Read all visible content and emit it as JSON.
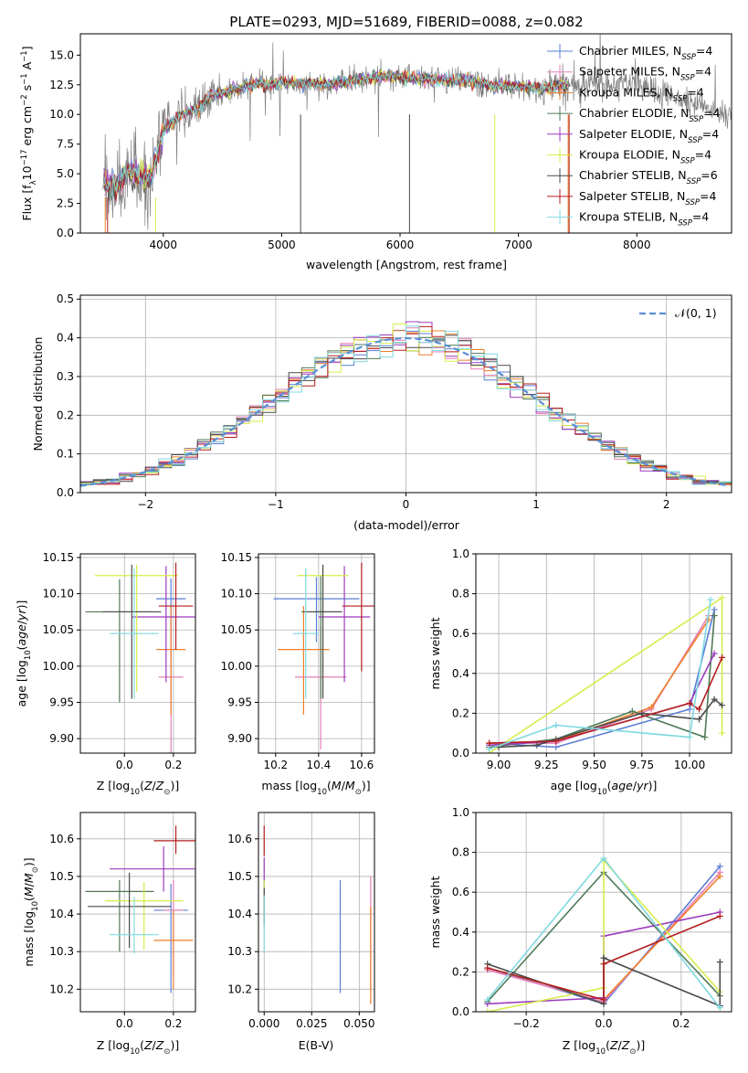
{
  "colors": {
    "chabrier_miles": "#5a7fd6",
    "salpeter_miles": "#e67fb8",
    "kroupa_miles": "#ef7f2a",
    "chabrier_elodie": "#4f7a58",
    "salpeter_elodie": "#9c3bbd",
    "kroupa_elodie": "#d8ec4a",
    "chabrier_stelib": "#4a4a4a",
    "salpeter_stelib": "#b51f1f",
    "kroupa_stelib": "#7fd9e0",
    "spectrum": "#808080",
    "gauss": "#5a8fd6"
  },
  "chart_data": [
    {
      "id": "spectrum",
      "type": "line",
      "title": "PLATE=0293, MJD=51689, FIBERID=0088, z=0.082",
      "xlabel": "wavelength [Angstrom, rest frame]",
      "ylabel": "Flux [f_λ 10^-17 erg cm^-2 s^-1 A^-1]",
      "xlim": [
        3300,
        8800
      ],
      "ylim": [
        0,
        16.8
      ],
      "xticks": [
        "4000",
        "5000",
        "6000",
        "7000",
        "8000"
      ],
      "yticks": [
        "0.0",
        "2.5",
        "5.0",
        "7.5",
        "10.0",
        "12.5",
        "15.0"
      ],
      "legend_position": "right",
      "series": [
        {
          "name": "Chabrier MILES, N_SSP=4"
        },
        {
          "name": "Salpeter MILES, N_SSP=4"
        },
        {
          "name": "Kroupa MILES, N_SSP=4"
        },
        {
          "name": "Chabrier ELODIE, N_SSP=4"
        },
        {
          "name": "Salpeter ELODIE, N_SSP=4"
        },
        {
          "name": "Kroupa ELODIE, N_SSP=4"
        },
        {
          "name": "Chabrier STELIB, N_SSP=6"
        },
        {
          "name": "Salpeter STELIB, N_SSP=4"
        },
        {
          "name": "Kroupa STELIB, N_SSP=4"
        }
      ],
      "continuum_x": [
        3500,
        3600,
        3700,
        3800,
        3900,
        4000,
        4100,
        4200,
        4300,
        4400,
        4500,
        4600,
        4700,
        4800,
        4900,
        5000,
        5200,
        5400,
        5600,
        5800,
        6000,
        6200,
        6400,
        6600,
        6800,
        7000,
        7200,
        7400,
        7600,
        7800,
        8000,
        8200,
        8400,
        8600,
        8800
      ],
      "continuum_y": [
        4.2,
        3.8,
        5.2,
        4.6,
        4.8,
        8.6,
        9.6,
        10.2,
        10.6,
        11.6,
        11.8,
        12.2,
        12.4,
        12.6,
        12.5,
        12.7,
        12.6,
        12.5,
        12.8,
        13.2,
        13.2,
        13.0,
        12.9,
        12.8,
        12.4,
        12.4,
        12.2,
        12.5,
        12.4,
        12.5,
        12.6,
        11.8,
        11.2,
        10.5,
        9.8
      ]
    },
    {
      "id": "residuals",
      "type": "bar",
      "xlabel": "(data-model)/error",
      "ylabel": "Normed distribution",
      "xlim": [
        -2.5,
        2.5
      ],
      "ylim": [
        0,
        0.51
      ],
      "xticks": [
        "−2",
        "−1",
        "0",
        "1",
        "2"
      ],
      "yticks": [
        "0.0",
        "0.1",
        "0.2",
        "0.3",
        "0.4",
        "0.5"
      ],
      "legend": "𝒩(0, 1)",
      "legend_position": "top-right",
      "bin_width": 0.1
    },
    {
      "id": "age-vs-Z",
      "type": "scatter",
      "xlabel": "Z [log10(Z/Z⊙)]",
      "ylabel": "age  [log10(age/yr)]",
      "xlim": [
        -0.18,
        0.29
      ],
      "ylim": [
        9.88,
        10.155
      ],
      "xticks": [
        "0.0",
        "0.2"
      ],
      "yticks": [
        "9.90",
        "9.95",
        "10.00",
        "10.05",
        "10.10",
        "10.15"
      ],
      "points": [
        {
          "series": "chabrier_miles",
          "x": 0.19,
          "y": 10.093,
          "xerr": 0.06,
          "yerr": [
            0.063,
            0.028
          ]
        },
        {
          "series": "salpeter_miles",
          "x": 0.19,
          "y": 9.985,
          "xerr": 0.05,
          "yerr": [
            0.11,
            0.07
          ]
        },
        {
          "series": "kroupa_miles",
          "x": 0.19,
          "y": 10.023,
          "xerr": 0.06,
          "yerr": [
            0.09,
            0.06
          ]
        },
        {
          "series": "chabrier_elodie",
          "x": -0.02,
          "y": 10.075,
          "xerr": 0.14,
          "yerr": [
            0.125,
            0.045
          ]
        },
        {
          "series": "salpeter_elodie",
          "x": 0.17,
          "y": 10.068,
          "xerr": 0.14,
          "yerr": [
            0.09,
            0.07
          ]
        },
        {
          "series": "kroupa_elodie",
          "x": 0.05,
          "y": 10.125,
          "xerr": 0.17,
          "yerr": [
            0.16,
            0.015
          ]
        },
        {
          "series": "chabrier_stelib",
          "x": 0.03,
          "y": 10.075,
          "xerr": 0.12,
          "yerr": [
            0.12,
            0.065
          ]
        },
        {
          "series": "salpeter_stelib",
          "x": 0.21,
          "y": 10.083,
          "xerr": 0.07,
          "yerr": [
            0.06,
            0.06
          ]
        },
        {
          "series": "kroupa_stelib",
          "x": 0.04,
          "y": 10.045,
          "xerr": 0.1,
          "yerr": [
            0.09,
            0.09
          ]
        }
      ]
    },
    {
      "id": "age-vs-mass",
      "type": "scatter",
      "xlabel": "mass [log10(M/M⊙)]",
      "ylabel": "",
      "xlim": [
        10.12,
        10.66
      ],
      "ylim": [
        9.88,
        10.155
      ],
      "xticks": [
        "10.2",
        "10.4",
        "10.6"
      ],
      "yticks": [
        "9.90",
        "9.95",
        "10.00",
        "10.05",
        "10.10",
        "10.15"
      ],
      "points": [
        {
          "series": "chabrier_miles",
          "x": 10.39,
          "y": 10.093,
          "xerr": 0.2,
          "yerr": [
            0.06,
            0.03
          ]
        },
        {
          "series": "salpeter_miles",
          "x": 10.41,
          "y": 9.985,
          "xerr": 0.12,
          "yerr": [
            0.1,
            0.07
          ]
        },
        {
          "series": "kroupa_miles",
          "x": 10.33,
          "y": 10.023,
          "xerr": 0.12,
          "yerr": [
            0.09,
            0.06
          ]
        },
        {
          "series": "chabrier_elodie",
          "x": 10.41,
          "y": 10.075,
          "xerr": 0.09,
          "yerr": [
            0.12,
            0.05
          ]
        },
        {
          "series": "salpeter_elodie",
          "x": 10.52,
          "y": 10.068,
          "xerr": 0.12,
          "yerr": [
            0.09,
            0.07
          ]
        },
        {
          "series": "kroupa_elodie",
          "x": 10.42,
          "y": 10.125,
          "xerr": 0.12,
          "yerr": [
            0.16,
            0.015
          ]
        },
        {
          "series": "chabrier_stelib",
          "x": 10.42,
          "y": 10.075,
          "xerr": 0.09,
          "yerr": [
            0.12,
            0.065
          ]
        },
        {
          "series": "salpeter_stelib",
          "x": 10.6,
          "y": 10.083,
          "xerr": 0.09,
          "yerr": [
            0.09,
            0.06
          ]
        },
        {
          "series": "kroupa_stelib",
          "x": 10.34,
          "y": 10.045,
          "xerr": 0.06,
          "yerr": [
            0.09,
            0.09
          ]
        }
      ]
    },
    {
      "id": "mass-vs-Z",
      "type": "scatter",
      "xlabel": "Z [log10(Z/Z⊙)]",
      "ylabel": "mass [log10(M/M⊙)]",
      "xlim": [
        -0.18,
        0.29
      ],
      "ylim": [
        10.14,
        10.67
      ],
      "xticks": [
        "0.0",
        "0.2"
      ],
      "yticks": [
        "10.2",
        "10.3",
        "10.4",
        "10.5",
        "10.6"
      ],
      "points": [
        {
          "series": "chabrier_miles",
          "x": 0.19,
          "y": 10.41,
          "xerr": 0.07,
          "yerr": [
            0.22,
            0.07
          ]
        },
        {
          "series": "salpeter_miles",
          "x": 0.2,
          "y": 10.41,
          "xerr": 0.04,
          "yerr": [
            0.18,
            0.08
          ]
        },
        {
          "series": "kroupa_miles",
          "x": 0.2,
          "y": 10.33,
          "xerr": 0.08,
          "yerr": [
            0.13,
            0.08
          ]
        },
        {
          "series": "chabrier_elodie",
          "x": -0.02,
          "y": 10.46,
          "xerr": 0.14,
          "yerr": [
            0.16,
            0.03
          ]
        },
        {
          "series": "salpeter_elodie",
          "x": 0.16,
          "y": 10.52,
          "xerr": 0.22,
          "yerr": [
            0.06,
            0.06
          ]
        },
        {
          "series": "kroupa_elodie",
          "x": 0.08,
          "y": 10.435,
          "xerr": 0.16,
          "yerr": [
            0.13,
            0.05
          ]
        },
        {
          "series": "chabrier_stelib",
          "x": 0.02,
          "y": 10.42,
          "xerr": 0.17,
          "yerr": [
            0.11,
            0.09
          ]
        },
        {
          "series": "salpeter_stelib",
          "x": 0.21,
          "y": 10.595,
          "xerr": 0.09,
          "yerr": [
            0.035,
            0.04
          ]
        },
        {
          "series": "kroupa_stelib",
          "x": 0.04,
          "y": 10.345,
          "xerr": 0.1,
          "yerr": [
            0.05,
            0.1
          ]
        }
      ]
    },
    {
      "id": "mass-vs-ebv",
      "type": "scatter",
      "xlabel": "E(B-V)",
      "ylabel": "",
      "xlim": [
        -0.003,
        0.058
      ],
      "ylim": [
        10.14,
        10.67
      ],
      "xticks": [
        "0.000",
        "0.025",
        "0.050"
      ],
      "yticks": [
        "10.2",
        "10.3",
        "10.4",
        "10.5",
        "10.6"
      ],
      "points": [
        {
          "series": "chabrier_miles",
          "x": 0.04,
          "y": 10.34,
          "yerr": [
            0.15,
            0.15
          ]
        },
        {
          "series": "salpeter_miles",
          "x": 0.056,
          "y": 10.4,
          "yerr": [
            0.2,
            0.1
          ]
        },
        {
          "series": "kroupa_miles",
          "x": 0.056,
          "y": 10.3,
          "yerr": [
            0.14,
            0.12
          ]
        },
        {
          "series": "chabrier_elodie",
          "x": 0.0,
          "y": 10.43,
          "yerr": [
            0.05,
            0.06
          ]
        },
        {
          "series": "salpeter_elodie",
          "x": 0.0,
          "y": 10.5,
          "yerr": [
            0.05,
            0.05
          ]
        },
        {
          "series": "kroupa_elodie",
          "x": 0.0,
          "y": 10.44,
          "yerr": [
            0.05,
            0.05
          ]
        },
        {
          "series": "chabrier_stelib",
          "x": 0.0,
          "y": 10.42,
          "yerr": [
            0.05,
            0.05
          ]
        },
        {
          "series": "salpeter_stelib",
          "x": 0.0,
          "y": 10.595,
          "yerr": [
            0.04,
            0.04
          ]
        },
        {
          "series": "kroupa_stelib",
          "x": 0.0,
          "y": 10.35,
          "yerr": [
            0.05,
            0.1
          ]
        }
      ]
    },
    {
      "id": "weight-vs-age",
      "type": "line",
      "xlabel": "age  [log10(age/yr)]",
      "ylabel": "mass weight",
      "xlim": [
        8.88,
        10.22
      ],
      "ylim": [
        0,
        1.0
      ],
      "xticks": [
        "9.00",
        "9.25",
        "9.50",
        "9.75",
        "10.00"
      ],
      "yticks": [
        "0.0",
        "0.2",
        "0.4",
        "0.6",
        "0.8",
        "1.0"
      ],
      "series": [
        {
          "series": "chabrier_miles",
          "x": [
            8.95,
            9.3,
            10.0,
            10.13
          ],
          "y": [
            0.05,
            0.03,
            0.22,
            0.72
          ]
        },
        {
          "series": "salpeter_miles",
          "x": [
            8.95,
            9.3,
            9.8,
            10.1
          ],
          "y": [
            0.05,
            0.05,
            0.22,
            0.69
          ]
        },
        {
          "series": "kroupa_miles",
          "x": [
            8.95,
            9.3,
            9.8,
            10.1
          ],
          "y": [
            0.05,
            0.06,
            0.23,
            0.67
          ]
        },
        {
          "series": "chabrier_elodie",
          "x": [
            8.95,
            9.3,
            9.7,
            10.08,
            10.13
          ],
          "y": [
            0.03,
            0.07,
            0.21,
            0.08,
            0.69
          ]
        },
        {
          "series": "salpeter_elodie",
          "x": [
            8.95,
            9.3,
            10.0,
            10.13
          ],
          "y": [
            0.04,
            0.06,
            0.25,
            0.5
          ]
        },
        {
          "series": "kroupa_elodie",
          "x": [
            8.95,
            10.17,
            10.17
          ],
          "y": [
            0.0,
            0.78,
            0.1
          ]
        },
        {
          "series": "chabrier_stelib",
          "x": [
            9.0,
            9.2,
            9.75,
            10.05,
            10.13,
            10.17
          ],
          "y": [
            0.03,
            0.04,
            0.2,
            0.17,
            0.27,
            0.24
          ]
        },
        {
          "series": "salpeter_stelib",
          "x": [
            8.95,
            9.3,
            10.0,
            10.05,
            10.17
          ],
          "y": [
            0.05,
            0.06,
            0.25,
            0.22,
            0.48
          ]
        },
        {
          "series": "kroupa_stelib",
          "x": [
            8.95,
            9.3,
            10.0,
            10.11
          ],
          "y": [
            0.02,
            0.14,
            0.08,
            0.77
          ]
        }
      ]
    },
    {
      "id": "weight-vs-Z",
      "type": "line",
      "xlabel": "Z [log10(Z/Z⊙)]",
      "ylabel": "mass weight",
      "xlim": [
        -0.33,
        0.33
      ],
      "ylim": [
        0,
        1.0
      ],
      "xticks": [
        "−0.2",
        "0.0",
        "0.2"
      ],
      "yticks": [
        "0.0",
        "0.2",
        "0.4",
        "0.6",
        "0.8",
        "1.0"
      ],
      "series": [
        {
          "series": "chabrier_miles",
          "x": [
            -0.3,
            0.0,
            0.3
          ],
          "y": [
            0.22,
            0.04,
            0.73
          ]
        },
        {
          "series": "salpeter_miles",
          "x": [
            -0.3,
            0.0,
            0.3
          ],
          "y": [
            0.21,
            0.05,
            0.7
          ]
        },
        {
          "series": "kroupa_miles",
          "x": [
            -0.3,
            0.0,
            0.3
          ],
          "y": [
            0.22,
            0.06,
            0.68
          ]
        },
        {
          "series": "chabrier_elodie",
          "x": [
            -0.3,
            0.0,
            0.3
          ],
          "y": [
            0.05,
            0.7,
            0.08
          ]
        },
        {
          "series": "salpeter_elodie",
          "x": [
            -0.3,
            0.0,
            0.0,
            0.3
          ],
          "y": [
            0.04,
            0.07,
            0.38,
            0.5
          ]
        },
        {
          "series": "kroupa_elodie",
          "x": [
            -0.3,
            0.0,
            0.0,
            0.3
          ],
          "y": [
            0.0,
            0.12,
            0.76,
            0.1
          ]
        },
        {
          "series": "chabrier_stelib",
          "x": [
            -0.3,
            0.0,
            0.0,
            0.3,
            0.3
          ],
          "y": [
            0.24,
            0.04,
            0.27,
            0.03,
            0.25
          ]
        },
        {
          "series": "salpeter_stelib",
          "x": [
            -0.3,
            0.0,
            0.0,
            0.3
          ],
          "y": [
            0.22,
            0.06,
            0.24,
            0.48
          ]
        },
        {
          "series": "kroupa_stelib",
          "x": [
            -0.3,
            0.0,
            0.3
          ],
          "y": [
            0.06,
            0.77,
            0.02
          ]
        }
      ]
    }
  ]
}
